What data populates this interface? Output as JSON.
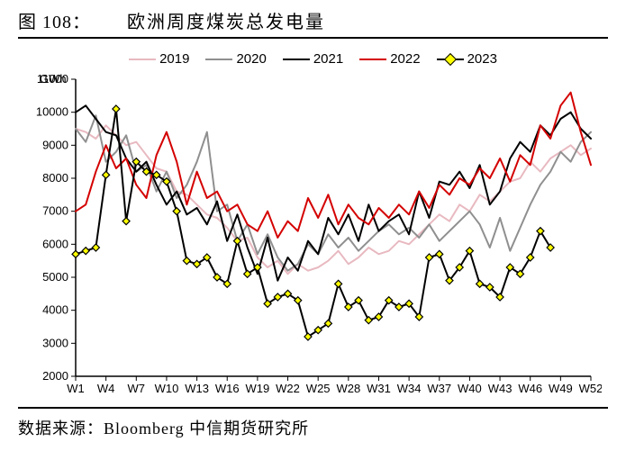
{
  "header": {
    "fig_label": "图 108：",
    "fig_title": "欧洲周度煤炭总发电量"
  },
  "source": "数据来源：Bloomberg  中信期货研究所",
  "chart": {
    "type": "line",
    "y_unit": "GWh",
    "ylim": [
      2000,
      11000
    ],
    "ytick_step": 1000,
    "xlim": [
      1,
      52
    ],
    "xtick_step": 3,
    "xtick_prefix": "W",
    "background_color": "#ffffff",
    "axis_color": "#000000",
    "tick_length": 5,
    "line_width": 2,
    "marker": {
      "shape": "diamond",
      "size": 8,
      "fill": "#ffff00",
      "stroke": "#000000",
      "stroke_width": 1.2
    },
    "legend_fontsize": 15,
    "axis_fontsize": 13,
    "series": [
      {
        "name": "2019",
        "color": "#e8b9c0",
        "has_marker": false,
        "values": [
          9500,
          9400,
          9200,
          9600,
          9300,
          9000,
          9100,
          8700,
          8300,
          8200,
          7600,
          7500,
          7200,
          6900,
          6800,
          6500,
          6100,
          6200,
          5600,
          5300,
          5500,
          5100,
          5400,
          5200,
          5300,
          5500,
          5800,
          5400,
          5600,
          5900,
          5700,
          5800,
          6100,
          6000,
          6300,
          6600,
          6900,
          6700,
          7200,
          7000,
          7500,
          7300,
          7600,
          7900,
          8000,
          8500,
          8200,
          8600,
          8800,
          9000,
          8700,
          8900
        ]
      },
      {
        "name": "2020",
        "color": "#8f8f8f",
        "has_marker": false,
        "values": [
          9500,
          9100,
          9900,
          8500,
          8800,
          9300,
          8200,
          8400,
          7600,
          8200,
          7400,
          7800,
          8500,
          9400,
          7000,
          7200,
          6100,
          6600,
          5700,
          6300,
          5600,
          5200,
          5400,
          6000,
          5700,
          6300,
          5900,
          6200,
          5800,
          6100,
          6400,
          6600,
          6300,
          6500,
          6200,
          6600,
          6100,
          6400,
          6700,
          7000,
          6600,
          5900,
          6800,
          5800,
          6500,
          7200,
          7800,
          8200,
          8800,
          8500,
          9100,
          9400
        ]
      },
      {
        "name": "2021",
        "color": "#000000",
        "has_marker": false,
        "values": [
          10000,
          10200,
          9800,
          9400,
          9300,
          8600,
          8200,
          8500,
          7800,
          7200,
          7600,
          6900,
          7100,
          6600,
          7300,
          6100,
          6900,
          5900,
          5100,
          6200,
          4900,
          5600,
          5200,
          6100,
          5700,
          6800,
          6300,
          6900,
          6100,
          7200,
          6400,
          6700,
          6900,
          6300,
          7600,
          6800,
          7900,
          7800,
          8200,
          7700,
          8400,
          7200,
          7600,
          8600,
          9100,
          8800,
          9600,
          9300,
          9800,
          10000,
          9500,
          9200
        ]
      },
      {
        "name": "2022",
        "color": "#d40000",
        "has_marker": false,
        "values": [
          7000,
          7200,
          8200,
          9000,
          8300,
          8600,
          7800,
          7400,
          8700,
          9400,
          8500,
          7200,
          8200,
          7400,
          7600,
          7000,
          7200,
          6600,
          6400,
          7000,
          6200,
          6700,
          6400,
          7400,
          6800,
          7500,
          6600,
          7200,
          6800,
          6600,
          7100,
          6800,
          7200,
          6900,
          7600,
          7100,
          7800,
          7500,
          8000,
          7800,
          8300,
          8000,
          8600,
          7900,
          8700,
          8400,
          9600,
          9200,
          10200,
          10600,
          9400,
          8400
        ]
      },
      {
        "name": "2023",
        "color": "#000000",
        "has_marker": true,
        "values": [
          5700,
          5800,
          5900,
          8100,
          10100,
          6700,
          8500,
          8200,
          8100,
          7900,
          7000,
          5500,
          5400,
          5600,
          5000,
          4800,
          6100,
          5100,
          5300,
          4200,
          4400,
          4500,
          4300,
          3200,
          3400,
          3600,
          4800,
          4100,
          4300,
          3700,
          3800,
          4300,
          4100,
          4200,
          3800,
          5600,
          5700,
          4900,
          5300,
          5800,
          4800,
          4700,
          4400,
          5300,
          5100,
          5600,
          6400,
          5900
        ]
      }
    ]
  }
}
